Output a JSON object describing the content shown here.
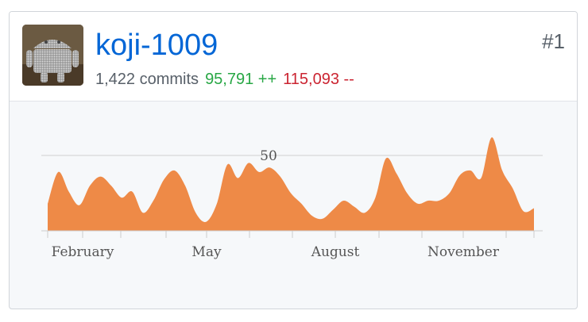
{
  "contributor": {
    "username": "koji-1009",
    "rank": "#1",
    "commits": "1,422 commits",
    "additions": "95,791 ++",
    "deletions": "115,093 --",
    "avatar_icon": "android-robot-avatar-icon"
  },
  "colors": {
    "area_fill": "#ee8a47",
    "link": "#0366d6",
    "additions": "#28a745",
    "deletions": "#cb2431"
  },
  "chart_data": {
    "type": "area",
    "x_tick_labels": [
      "February",
      "May",
      "August",
      "November"
    ],
    "y_gridline_label": "50",
    "y_gridline_value": 50,
    "ylim": [
      0,
      50
    ],
    "grid": "single horizontal gridline",
    "values": [
      18,
      39,
      26,
      17,
      30,
      36,
      30,
      22,
      26,
      12,
      20,
      34,
      40,
      30,
      12,
      6,
      18,
      44,
      35,
      45,
      39,
      42,
      36,
      25,
      18,
      10,
      8,
      14,
      20,
      16,
      12,
      22,
      48,
      38,
      25,
      18,
      20,
      20,
      25,
      37,
      40,
      35,
      62,
      40,
      28,
      13,
      15
    ]
  }
}
